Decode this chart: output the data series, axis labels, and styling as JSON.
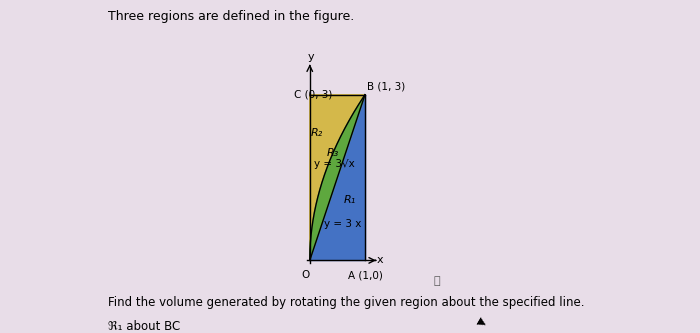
{
  "title": "Three regions are defined in the figure.",
  "title_fontsize": 9,
  "footer_line1": "Find the volume generated by rotating the given region about the specified line.",
  "footer_line2": "ℜ₁ about BC",
  "label_C": "C (0, 3)",
  "label_B": "B (1, 3)",
  "label_A": "A (1,0)",
  "label_O": "O",
  "label_R1": "R₁",
  "label_R2": "R₂",
  "label_R3": "R₃",
  "eq_sqrt": "y = 3√x",
  "eq_linear": "y = 3 x",
  "color_R1": "#4472C4",
  "color_R2": "#D4B84A",
  "color_R3": "#5EA83E",
  "sidebar_color": "#3A3550",
  "background_color": "#E8DDE8",
  "figsize": [
    7.0,
    3.33
  ],
  "dpi": 100
}
